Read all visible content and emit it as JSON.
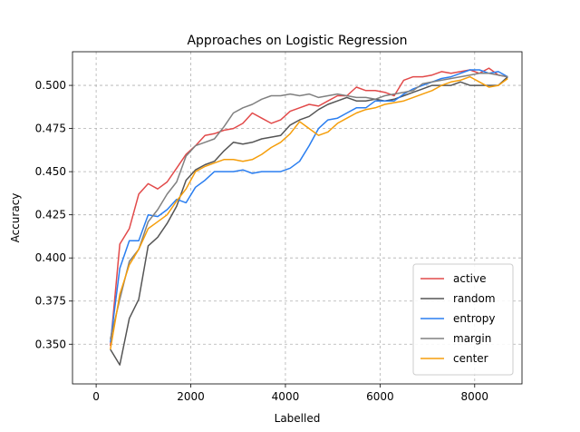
{
  "chart_data": {
    "type": "line",
    "title": "Approaches on Logistic Regression",
    "xlabel": "Labelled",
    "ylabel": "Accuracy",
    "xlim": [
      -500,
      9000
    ],
    "ylim": [
      0.327,
      0.5195
    ],
    "xticks": [
      0,
      2000,
      4000,
      6000,
      8000
    ],
    "xtick_labels": [
      "0",
      "2000",
      "4000",
      "6000",
      "8000"
    ],
    "yticks": [
      0.35,
      0.375,
      0.4,
      0.425,
      0.45,
      0.475,
      0.5
    ],
    "ytick_labels": [
      "0.350",
      "0.375",
      "0.400",
      "0.425",
      "0.450",
      "0.475",
      "0.500"
    ],
    "grid": true,
    "legend_position": "lower-right",
    "series": [
      {
        "name": "active",
        "color": "#e24a4a",
        "points": [
          [
            300,
            0.349
          ],
          [
            500,
            0.408
          ],
          [
            700,
            0.417
          ],
          [
            900,
            0.437
          ],
          [
            1100,
            0.443
          ],
          [
            1300,
            0.44
          ],
          [
            1500,
            0.444
          ],
          [
            1700,
            0.452
          ],
          [
            1900,
            0.46
          ],
          [
            2100,
            0.465
          ],
          [
            2300,
            0.471
          ],
          [
            2500,
            0.472
          ],
          [
            2700,
            0.474
          ],
          [
            2900,
            0.475
          ],
          [
            3100,
            0.478
          ],
          [
            3300,
            0.484
          ],
          [
            3500,
            0.481
          ],
          [
            3700,
            0.478
          ],
          [
            3900,
            0.48
          ],
          [
            4100,
            0.485
          ],
          [
            4300,
            0.487
          ],
          [
            4500,
            0.489
          ],
          [
            4700,
            0.488
          ],
          [
            4900,
            0.491
          ],
          [
            5100,
            0.494
          ],
          [
            5300,
            0.494
          ],
          [
            5500,
            0.499
          ],
          [
            5700,
            0.497
          ],
          [
            5900,
            0.497
          ],
          [
            6100,
            0.496
          ],
          [
            6300,
            0.494
          ],
          [
            6500,
            0.503
          ],
          [
            6700,
            0.505
          ],
          [
            6900,
            0.505
          ],
          [
            7100,
            0.506
          ],
          [
            7300,
            0.508
          ],
          [
            7500,
            0.507
          ],
          [
            7700,
            0.508
          ],
          [
            7900,
            0.509
          ],
          [
            8100,
            0.507
          ],
          [
            8300,
            0.51
          ],
          [
            8500,
            0.506
          ],
          [
            8700,
            0.505
          ]
        ]
      },
      {
        "name": "random",
        "color": "#555555",
        "points": [
          [
            300,
            0.347
          ],
          [
            500,
            0.338
          ],
          [
            700,
            0.365
          ],
          [
            900,
            0.376
          ],
          [
            1100,
            0.407
          ],
          [
            1300,
            0.412
          ],
          [
            1500,
            0.42
          ],
          [
            1700,
            0.43
          ],
          [
            1900,
            0.445
          ],
          [
            2100,
            0.451
          ],
          [
            2300,
            0.454
          ],
          [
            2500,
            0.456
          ],
          [
            2700,
            0.462
          ],
          [
            2900,
            0.467
          ],
          [
            3100,
            0.466
          ],
          [
            3300,
            0.467
          ],
          [
            3500,
            0.469
          ],
          [
            3700,
            0.47
          ],
          [
            3900,
            0.471
          ],
          [
            4100,
            0.477
          ],
          [
            4300,
            0.48
          ],
          [
            4500,
            0.482
          ],
          [
            4700,
            0.486
          ],
          [
            4900,
            0.489
          ],
          [
            5100,
            0.491
          ],
          [
            5300,
            0.493
          ],
          [
            5500,
            0.491
          ],
          [
            5700,
            0.491
          ],
          [
            5900,
            0.492
          ],
          [
            6100,
            0.491
          ],
          [
            6300,
            0.492
          ],
          [
            6500,
            0.494
          ],
          [
            6700,
            0.496
          ],
          [
            6900,
            0.498
          ],
          [
            7100,
            0.5
          ],
          [
            7300,
            0.5
          ],
          [
            7500,
            0.5
          ],
          [
            7700,
            0.502
          ],
          [
            7900,
            0.5
          ],
          [
            8100,
            0.5
          ],
          [
            8300,
            0.5
          ],
          [
            8500,
            0.5
          ],
          [
            8700,
            0.505
          ]
        ]
      },
      {
        "name": "entropy",
        "color": "#2a7ef0",
        "points": [
          [
            300,
            0.351
          ],
          [
            500,
            0.394
          ],
          [
            700,
            0.41
          ],
          [
            900,
            0.41
          ],
          [
            1100,
            0.425
          ],
          [
            1300,
            0.424
          ],
          [
            1500,
            0.428
          ],
          [
            1700,
            0.434
          ],
          [
            1900,
            0.432
          ],
          [
            2100,
            0.441
          ],
          [
            2300,
            0.445
          ],
          [
            2500,
            0.45
          ],
          [
            2700,
            0.45
          ],
          [
            2900,
            0.45
          ],
          [
            3100,
            0.451
          ],
          [
            3300,
            0.449
          ],
          [
            3500,
            0.45
          ],
          [
            3700,
            0.45
          ],
          [
            3900,
            0.45
          ],
          [
            4100,
            0.452
          ],
          [
            4300,
            0.456
          ],
          [
            4500,
            0.465
          ],
          [
            4700,
            0.475
          ],
          [
            4900,
            0.48
          ],
          [
            5100,
            0.481
          ],
          [
            5300,
            0.484
          ],
          [
            5500,
            0.487
          ],
          [
            5700,
            0.487
          ],
          [
            5900,
            0.491
          ],
          [
            6100,
            0.491
          ],
          [
            6300,
            0.491
          ],
          [
            6500,
            0.495
          ],
          [
            6700,
            0.498
          ],
          [
            6900,
            0.5
          ],
          [
            7100,
            0.502
          ],
          [
            7300,
            0.504
          ],
          [
            7500,
            0.505
          ],
          [
            7700,
            0.507
          ],
          [
            7900,
            0.509
          ],
          [
            8100,
            0.509
          ],
          [
            8300,
            0.507
          ],
          [
            8500,
            0.508
          ],
          [
            8700,
            0.505
          ]
        ]
      },
      {
        "name": "margin",
        "color": "#808080",
        "points": [
          [
            300,
            0.353
          ],
          [
            500,
            0.376
          ],
          [
            700,
            0.398
          ],
          [
            900,
            0.405
          ],
          [
            1100,
            0.421
          ],
          [
            1300,
            0.428
          ],
          [
            1500,
            0.437
          ],
          [
            1700,
            0.444
          ],
          [
            1900,
            0.459
          ],
          [
            2100,
            0.465
          ],
          [
            2300,
            0.467
          ],
          [
            2500,
            0.469
          ],
          [
            2700,
            0.476
          ],
          [
            2900,
            0.484
          ],
          [
            3100,
            0.487
          ],
          [
            3300,
            0.489
          ],
          [
            3500,
            0.492
          ],
          [
            3700,
            0.494
          ],
          [
            3900,
            0.494
          ],
          [
            4100,
            0.495
          ],
          [
            4300,
            0.494
          ],
          [
            4500,
            0.495
          ],
          [
            4700,
            0.493
          ],
          [
            4900,
            0.494
          ],
          [
            5100,
            0.495
          ],
          [
            5300,
            0.494
          ],
          [
            5500,
            0.493
          ],
          [
            5700,
            0.493
          ],
          [
            5900,
            0.492
          ],
          [
            6100,
            0.494
          ],
          [
            6300,
            0.495
          ],
          [
            6500,
            0.496
          ],
          [
            6700,
            0.497
          ],
          [
            6900,
            0.501
          ],
          [
            7100,
            0.502
          ],
          [
            7300,
            0.503
          ],
          [
            7500,
            0.504
          ],
          [
            7700,
            0.505
          ],
          [
            7900,
            0.506
          ],
          [
            8100,
            0.507
          ],
          [
            8300,
            0.507
          ],
          [
            8500,
            0.506
          ],
          [
            8700,
            0.505
          ]
        ]
      },
      {
        "name": "center",
        "color": "#f59e0b",
        "points": [
          [
            300,
            0.347
          ],
          [
            500,
            0.379
          ],
          [
            700,
            0.396
          ],
          [
            900,
            0.405
          ],
          [
            1100,
            0.417
          ],
          [
            1300,
            0.421
          ],
          [
            1500,
            0.425
          ],
          [
            1700,
            0.433
          ],
          [
            1900,
            0.44
          ],
          [
            2100,
            0.45
          ],
          [
            2300,
            0.453
          ],
          [
            2500,
            0.455
          ],
          [
            2700,
            0.457
          ],
          [
            2900,
            0.457
          ],
          [
            3100,
            0.456
          ],
          [
            3300,
            0.457
          ],
          [
            3500,
            0.46
          ],
          [
            3700,
            0.464
          ],
          [
            3900,
            0.467
          ],
          [
            4100,
            0.472
          ],
          [
            4300,
            0.479
          ],
          [
            4500,
            0.475
          ],
          [
            4700,
            0.471
          ],
          [
            4900,
            0.473
          ],
          [
            5100,
            0.478
          ],
          [
            5300,
            0.481
          ],
          [
            5500,
            0.484
          ],
          [
            5700,
            0.486
          ],
          [
            5900,
            0.487
          ],
          [
            6100,
            0.489
          ],
          [
            6300,
            0.49
          ],
          [
            6500,
            0.491
          ],
          [
            6700,
            0.493
          ],
          [
            6900,
            0.495
          ],
          [
            7100,
            0.497
          ],
          [
            7300,
            0.5
          ],
          [
            7500,
            0.502
          ],
          [
            7700,
            0.503
          ],
          [
            7900,
            0.505
          ],
          [
            8100,
            0.502
          ],
          [
            8300,
            0.499
          ],
          [
            8500,
            0.5
          ],
          [
            8700,
            0.504
          ]
        ]
      }
    ]
  }
}
